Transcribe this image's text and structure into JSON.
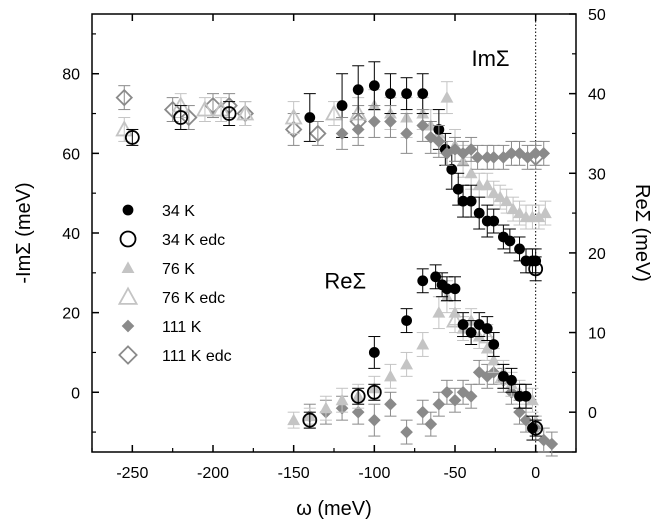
{
  "chart_data": {
    "type": "scatter",
    "xlabel": "ω (meV)",
    "ylabel_left": "-ImΣ (meV)",
    "ylabel_right": "ReΣ (meV)",
    "xlim": [
      -275,
      25
    ],
    "ylim_left": [
      -15,
      95
    ],
    "ylim_right": [
      -5,
      50
    ],
    "x_ticks": [
      -250,
      -200,
      -150,
      -100,
      -50,
      0
    ],
    "y_left_ticks": [
      0,
      20,
      40,
      60,
      80
    ],
    "y_right_ticks": [
      0,
      10,
      20,
      30,
      40,
      50
    ],
    "annotations": [
      {
        "text": "ImΣ",
        "x": -28,
        "y": 82
      },
      {
        "text": "ReΣ",
        "x": -118,
        "y": 26
      }
    ],
    "zero_line_x": 0,
    "legend_position": "left-center",
    "series": [
      {
        "name": "34 K",
        "marker": "circle",
        "filled": true,
        "color": "#000000",
        "axis": "left",
        "points": [
          [
            -140,
            69,
            6
          ],
          [
            -120,
            72,
            8
          ],
          [
            -110,
            76,
            6
          ],
          [
            -100,
            77,
            6
          ],
          [
            -90,
            75,
            5
          ],
          [
            -80,
            75,
            4
          ],
          [
            -70,
            75,
            5
          ],
          [
            -60,
            66,
            5
          ],
          [
            -56,
            61,
            4
          ],
          [
            -52,
            56,
            5
          ],
          [
            -48,
            51,
            4
          ],
          [
            -45,
            48,
            4
          ],
          [
            -40,
            48,
            4
          ],
          [
            -35,
            45,
            4
          ],
          [
            -30,
            43,
            4
          ],
          [
            -26,
            43,
            3
          ],
          [
            -20,
            39,
            3
          ],
          [
            -16,
            38,
            3
          ],
          [
            -10,
            36,
            3
          ],
          [
            -6,
            33,
            3
          ],
          [
            -2,
            33,
            3
          ],
          [
            0,
            33,
            3
          ]
        ]
      },
      {
        "name": "34 K",
        "marker": "circle",
        "filled": true,
        "color": "#000000",
        "axis": "left",
        "curve": "ReΣ",
        "points": [
          [
            -100,
            10,
            4
          ],
          [
            -80,
            18,
            3
          ],
          [
            -70,
            28,
            3
          ],
          [
            -62,
            29,
            3
          ],
          [
            -58,
            27,
            3
          ],
          [
            -55,
            26,
            3
          ],
          [
            -50,
            26,
            3
          ],
          [
            -45,
            17,
            3
          ],
          [
            -40,
            15,
            3
          ],
          [
            -35,
            17,
            3
          ],
          [
            -30,
            16,
            3
          ],
          [
            -26,
            12,
            3
          ],
          [
            -20,
            4,
            3
          ],
          [
            -15,
            3,
            3
          ],
          [
            -10,
            -1,
            3
          ],
          [
            -6,
            -1,
            3
          ],
          [
            -2,
            -9,
            3
          ]
        ]
      },
      {
        "name": "34 K edc",
        "marker": "circle",
        "filled": false,
        "color": "#000000",
        "axis": "left",
        "points": [
          [
            -250,
            64,
            2
          ],
          [
            -220,
            69,
            3
          ],
          [
            -190,
            70,
            3
          ],
          [
            0,
            31,
            3
          ]
        ]
      },
      {
        "name": "34 K edc",
        "marker": "circle",
        "filled": false,
        "color": "#000000",
        "axis": "left",
        "curve": "ReΣ",
        "points": [
          [
            -140,
            -7,
            2
          ],
          [
            -110,
            -1,
            2
          ],
          [
            -100,
            0,
            2
          ],
          [
            0,
            -9,
            2
          ]
        ]
      },
      {
        "name": "76 K",
        "marker": "triangle",
        "filled": true,
        "color": "#c4c4c4",
        "axis": "left",
        "points": [
          [
            -100,
            72,
            4
          ],
          [
            -90,
            70,
            4
          ],
          [
            -80,
            69,
            5
          ],
          [
            -70,
            70,
            4
          ],
          [
            -65,
            67,
            4
          ],
          [
            -60,
            65,
            5
          ],
          [
            -55,
            74,
            4
          ],
          [
            -50,
            62,
            4
          ],
          [
            -45,
            58,
            4
          ],
          [
            -40,
            55,
            4
          ],
          [
            -35,
            52,
            3
          ],
          [
            -30,
            52,
            3
          ],
          [
            -26,
            50,
            3
          ],
          [
            -22,
            49,
            3
          ],
          [
            -18,
            48,
            3
          ],
          [
            -14,
            46,
            3
          ],
          [
            -10,
            45,
            3
          ],
          [
            -6,
            44,
            3
          ],
          [
            -2,
            44,
            3
          ],
          [
            2,
            44,
            3
          ],
          [
            6,
            45,
            3
          ]
        ]
      },
      {
        "name": "76 K",
        "marker": "triangle",
        "filled": true,
        "color": "#c4c4c4",
        "axis": "left",
        "curve": "ReΣ",
        "points": [
          [
            -150,
            -7,
            2
          ],
          [
            -140,
            -6,
            2
          ],
          [
            -130,
            -4,
            3
          ],
          [
            -120,
            -2,
            3
          ],
          [
            -110,
            -1,
            3
          ],
          [
            -100,
            1,
            3
          ],
          [
            -90,
            4,
            3
          ],
          [
            -80,
            7,
            3
          ],
          [
            -70,
            12,
            3
          ],
          [
            -60,
            20,
            4
          ],
          [
            -55,
            24,
            4
          ],
          [
            -50,
            20,
            3
          ],
          [
            -45,
            16,
            3
          ],
          [
            -40,
            18,
            3
          ],
          [
            -35,
            14,
            3
          ],
          [
            -30,
            11,
            3
          ],
          [
            -26,
            8,
            3
          ],
          [
            -20,
            5,
            3
          ],
          [
            -15,
            2,
            3
          ],
          [
            -10,
            0,
            3
          ],
          [
            -6,
            -1,
            3
          ],
          [
            -2,
            -2,
            3
          ]
        ]
      },
      {
        "name": "76 K edc",
        "marker": "triangle",
        "filled": false,
        "color": "#c4c4c4",
        "axis": "left",
        "points": [
          [
            -255,
            66,
            3
          ],
          [
            -220,
            72,
            3
          ],
          [
            -205,
            71,
            3
          ],
          [
            -195,
            71,
            3
          ],
          [
            -180,
            70,
            3
          ],
          [
            -150,
            69,
            4
          ],
          [
            -125,
            70,
            3
          ],
          [
            -110,
            70,
            4
          ]
        ]
      },
      {
        "name": "76 K edc",
        "marker": "triangle",
        "filled": false,
        "color": "#c4c4c4",
        "axis": "left",
        "curve": "ReΣ",
        "points": [
          [
            -50,
            18,
            3
          ],
          [
            -30,
            14,
            3
          ],
          [
            -20,
            4,
            3
          ],
          [
            0,
            -8,
            2
          ]
        ]
      },
      {
        "name": "111 K",
        "marker": "diamond",
        "filled": true,
        "color": "#8a8a8a",
        "axis": "left",
        "points": [
          [
            -120,
            65,
            4
          ],
          [
            -110,
            66,
            4
          ],
          [
            -100,
            68,
            4
          ],
          [
            -90,
            68,
            4
          ],
          [
            -80,
            65,
            5
          ],
          [
            -70,
            67,
            4
          ],
          [
            -65,
            64,
            4
          ],
          [
            -60,
            63,
            4
          ],
          [
            -55,
            60,
            3
          ],
          [
            -50,
            61,
            3
          ],
          [
            -45,
            60,
            3
          ],
          [
            -40,
            61,
            3
          ],
          [
            -36,
            59,
            3
          ],
          [
            -30,
            59,
            3
          ],
          [
            -26,
            59,
            3
          ],
          [
            -20,
            59,
            3
          ],
          [
            -15,
            60,
            3
          ],
          [
            -10,
            60,
            3
          ],
          [
            -5,
            59,
            3
          ],
          [
            0,
            60,
            3
          ],
          [
            5,
            60,
            3
          ]
        ]
      },
      {
        "name": "111 K",
        "marker": "diamond",
        "filled": true,
        "color": "#8a8a8a",
        "axis": "left",
        "curve": "ReΣ",
        "points": [
          [
            -140,
            -6,
            3
          ],
          [
            -130,
            -5,
            3
          ],
          [
            -120,
            -4,
            3
          ],
          [
            -110,
            -5,
            3
          ],
          [
            -100,
            -7,
            4
          ],
          [
            -90,
            -3,
            3
          ],
          [
            -80,
            -10,
            3
          ],
          [
            -70,
            -5,
            3
          ],
          [
            -65,
            -8,
            3
          ],
          [
            -60,
            -3,
            3
          ],
          [
            -55,
            0,
            3
          ],
          [
            -50,
            -2,
            3
          ],
          [
            -45,
            0,
            3
          ],
          [
            -40,
            -1,
            3
          ],
          [
            -35,
            5,
            3
          ],
          [
            -30,
            4,
            3
          ],
          [
            -26,
            5,
            3
          ],
          [
            -20,
            3,
            3
          ],
          [
            -15,
            0,
            3
          ],
          [
            -10,
            -5,
            3
          ],
          [
            -6,
            -7,
            3
          ],
          [
            0,
            -9,
            3
          ],
          [
            5,
            -12,
            3
          ],
          [
            10,
            -13,
            3
          ]
        ]
      },
      {
        "name": "111 K edc",
        "marker": "diamond",
        "filled": false,
        "color": "#8a8a8a",
        "axis": "left",
        "points": [
          [
            -255,
            74,
            3
          ],
          [
            -225,
            71,
            3
          ],
          [
            -215,
            69,
            3
          ],
          [
            -200,
            72,
            3
          ],
          [
            -190,
            72,
            3
          ],
          [
            -180,
            70,
            3
          ],
          [
            -150,
            66,
            4
          ],
          [
            -135,
            65,
            3
          ],
          [
            -110,
            68,
            4
          ],
          [
            0,
            59,
            3
          ]
        ]
      }
    ],
    "legend": [
      {
        "label": "34 K",
        "marker": "circle",
        "filled": true,
        "color": "#000000"
      },
      {
        "label": "34 K edc",
        "marker": "circle",
        "filled": false,
        "color": "#000000"
      },
      {
        "label": "76 K",
        "marker": "triangle",
        "filled": true,
        "color": "#c4c4c4"
      },
      {
        "label": "76 K edc",
        "marker": "triangle",
        "filled": false,
        "color": "#c4c4c4"
      },
      {
        "label": "111 K",
        "marker": "diamond",
        "filled": true,
        "color": "#8a8a8a"
      },
      {
        "label": "111 K edc",
        "marker": "diamond",
        "filled": false,
        "color": "#8a8a8a"
      }
    ]
  }
}
